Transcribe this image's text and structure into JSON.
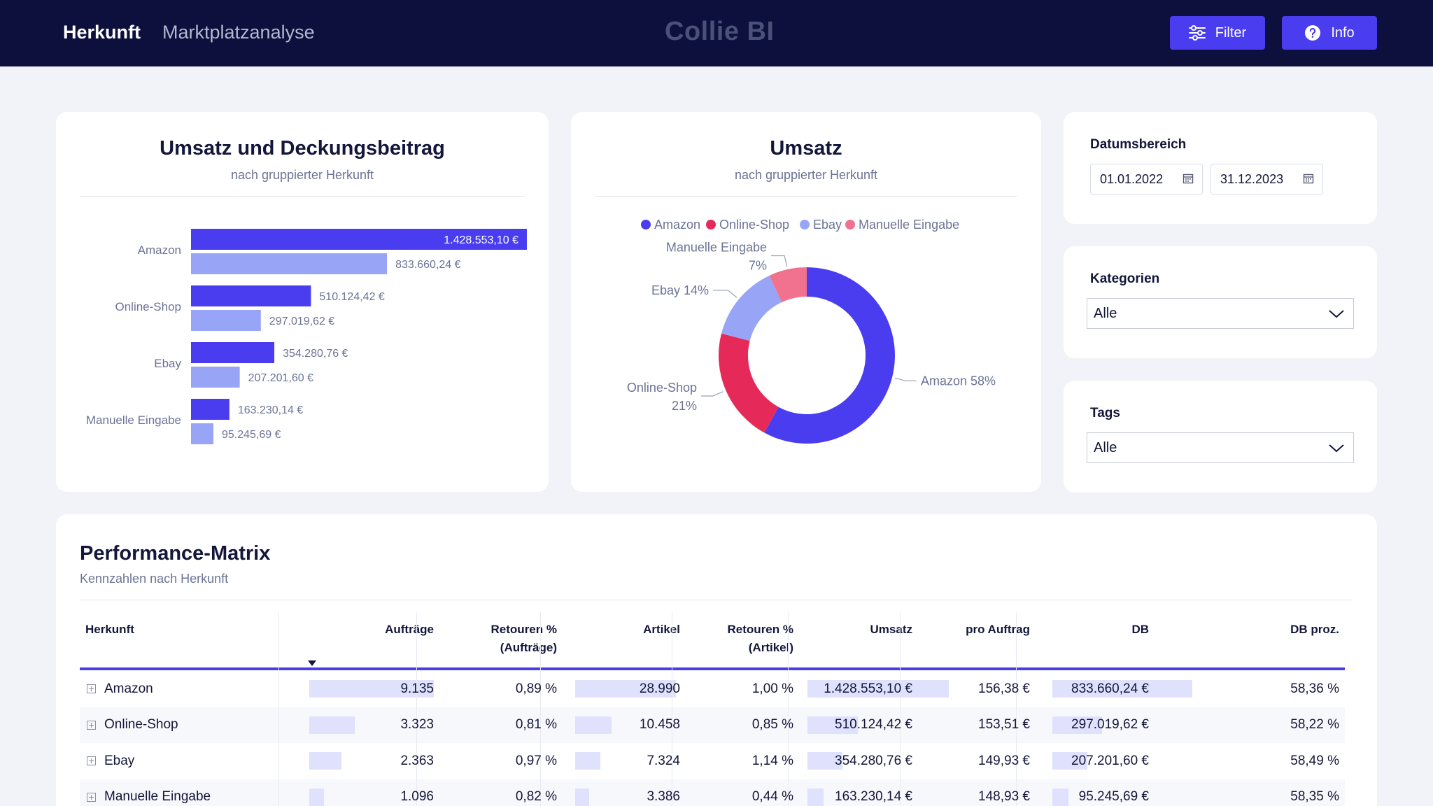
{
  "header": {
    "nav_primary": "Herkunft",
    "nav_secondary": "Marktplatzanalyse",
    "brand": "Collie BI",
    "filter_label": "Filter",
    "info_label": "Info"
  },
  "colors": {
    "navy": "#0d0f3c",
    "accent": "#4a3df0",
    "umsatz_bar": "#4a3df0",
    "db_bar": "#98a5f7",
    "amazon": "#4a3df0",
    "online_shop": "#e52a5a",
    "ebay": "#98a5f7",
    "manuelle_eingabe": "#f1728f"
  },
  "bar_card": {
    "title": "Umsatz und Deckungsbeitrag",
    "subtitle": "nach gruppierter Herkunft"
  },
  "donut_card": {
    "title": "Umsatz",
    "subtitle": "nach gruppierter Herkunft"
  },
  "chart_data": [
    {
      "type": "bar",
      "orientation": "horizontal",
      "title": "Umsatz und Deckungsbeitrag",
      "subtitle": "nach gruppierter Herkunft",
      "categories": [
        "Amazon",
        "Online-Shop",
        "Ebay",
        "Manuelle Eingabe"
      ],
      "series": [
        {
          "values": [
            1428553.1,
            510124.42,
            354280.76,
            163230.14
          ],
          "labels": [
            "1.428.553,10 €",
            "510.124,42 €",
            "354.280,76 €",
            "163.230,14 €"
          ]
        },
        {
          "values": [
            833660.24,
            297019.62,
            207201.6,
            95245.69
          ],
          "labels": [
            "833.660,24 €",
            "297.019,62 €",
            "207.201,60 €",
            "95.245,69 €"
          ]
        }
      ],
      "xlim": [
        0,
        1428553.1
      ],
      "grid": false
    },
    {
      "type": "pie",
      "donut": true,
      "title": "Umsatz",
      "subtitle": "nach gruppierter Herkunft",
      "legend_position": "top",
      "labels": [
        "Amazon",
        "Online-Shop",
        "Ebay",
        "Manuelle Eingabe"
      ],
      "values": [
        58,
        21,
        14,
        7
      ],
      "slice_labels": [
        "Amazon 58%",
        "Online-Shop",
        "Ebay 14%",
        "Manuelle Eingabe"
      ],
      "slice_labels_line2": [
        "",
        "21%",
        "",
        "7%"
      ]
    }
  ],
  "filters": {
    "date_label": "Datumsbereich",
    "date_from": "01.01.2022",
    "date_to": "31.12.2023",
    "kategorien_label": "Kategorien",
    "kategorien_value": "Alle",
    "tags_label": "Tags",
    "tags_value": "Alle"
  },
  "matrix": {
    "title": "Performance-Matrix",
    "subtitle": "Kennzahlen nach Herkunft",
    "columns": [
      "Herkunft",
      "Aufträge",
      "Retouren %",
      "(Aufträge)",
      "Artikel",
      "Retouren %",
      "(Artikel)",
      "Umsatz",
      "pro Auftrag",
      "DB",
      "DB proz."
    ],
    "rows": [
      {
        "name": "Amazon",
        "auftraege": "9.135",
        "auftraege_val": 9135,
        "ret_auf": "0,89 %",
        "artikel": "28.990",
        "artikel_val": 28990,
        "ret_art": "1,00 %",
        "umsatz": "1.428.553,10 €",
        "umsatz_val": 1428553.1,
        "pro_auftrag": "156,38 €",
        "db": "833.660,24 €",
        "db_val": 833660.24,
        "db_proz": "58,36 %"
      },
      {
        "name": "Online-Shop",
        "auftraege": "3.323",
        "auftraege_val": 3323,
        "ret_auf": "0,81 %",
        "artikel": "10.458",
        "artikel_val": 10458,
        "ret_art": "0,85 %",
        "umsatz": "510.124,42 €",
        "umsatz_val": 510124.42,
        "pro_auftrag": "153,51 €",
        "db": "297.019,62 €",
        "db_val": 297019.62,
        "db_proz": "58,22 %"
      },
      {
        "name": "Ebay",
        "auftraege": "2.363",
        "auftraege_val": 2363,
        "ret_auf": "0,97 %",
        "artikel": "7.324",
        "artikel_val": 7324,
        "ret_art": "1,14 %",
        "umsatz": "354.280,76 €",
        "umsatz_val": 354280.76,
        "pro_auftrag": "149,93 €",
        "db": "207.201,60 €",
        "db_val": 207201.6,
        "db_proz": "58,49 %"
      },
      {
        "name": "Manuelle Eingabe",
        "auftraege": "1.096",
        "auftraege_val": 1096,
        "ret_auf": "0,82 %",
        "artikel": "3.386",
        "artikel_val": 3386,
        "ret_art": "0,44 %",
        "umsatz": "163.230,14 €",
        "umsatz_val": 163230.14,
        "pro_auftrag": "148,93 €",
        "db": "95.245,69 €",
        "db_val": 95245.69,
        "db_proz": "58,35 %"
      }
    ]
  }
}
